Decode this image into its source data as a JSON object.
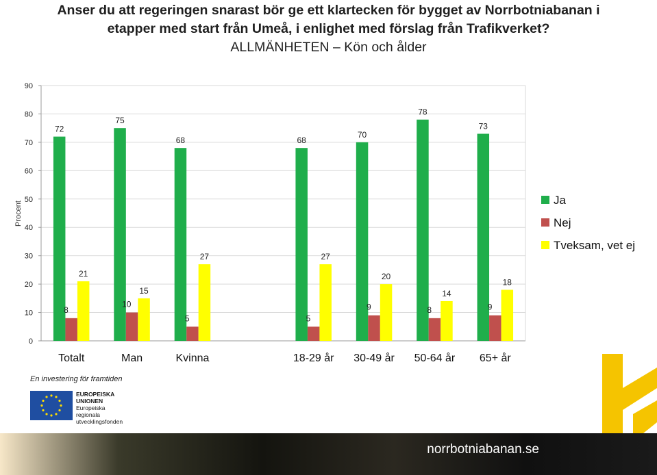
{
  "header": {
    "title_line1": "Anser du att regeringen snarast bör ge ett klartecken för bygget av Norrbotniabanan i",
    "title_line2": "etapper med start från Umeå, i enlighet med förslag från Trafikverket?",
    "subtitle": "ALLMÄNHETEN – Kön och ålder"
  },
  "chart_data": {
    "type": "bar",
    "ylabel": "Procent",
    "ylim": [
      0,
      90
    ],
    "yticks": [
      0,
      10,
      20,
      30,
      40,
      50,
      60,
      70,
      80,
      90
    ],
    "grid": true,
    "legend_position": "right",
    "categories": [
      "Totalt",
      "Man",
      "Kvinna",
      "",
      "18-29 år",
      "30-49 år",
      "50-64 år",
      "65+ år"
    ],
    "series": [
      {
        "name": "Ja",
        "color": "#1fae4b",
        "values": [
          72,
          75,
          68,
          null,
          68,
          70,
          78,
          73
        ]
      },
      {
        "name": "Nej",
        "color": "#c0504d",
        "values": [
          8,
          10,
          5,
          null,
          5,
          9,
          8,
          9
        ]
      },
      {
        "name": "Tveksam, vet ej",
        "color": "#ffff00",
        "values": [
          21,
          15,
          27,
          null,
          27,
          20,
          14,
          18
        ]
      }
    ]
  },
  "footer": {
    "tagline": "En investering för framtiden",
    "eu_line1": "EUROPEISKA",
    "eu_line2": "UNIONEN",
    "eu_line3": "Europeiska",
    "eu_line4": "regionala",
    "eu_line5": "utvecklingsfonden",
    "website": "norrbotniabanan.se"
  },
  "colors": {
    "accent_yellow": "#f5c400"
  }
}
